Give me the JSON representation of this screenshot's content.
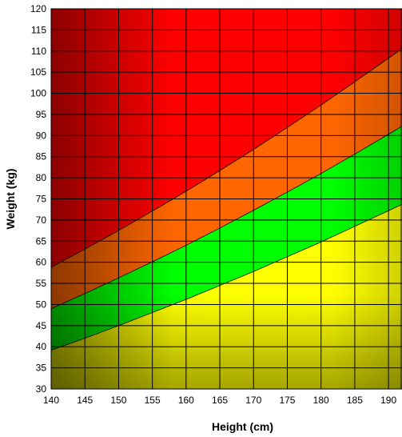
{
  "chart_data": {
    "type": "area",
    "title": "",
    "xlabel": "Height (cm)",
    "ylabel": "Weight (kg)",
    "xlim": [
      140,
      192
    ],
    "ylim": [
      30,
      120
    ],
    "x_ticks": [
      140,
      145,
      150,
      155,
      160,
      165,
      170,
      175,
      180,
      185,
      190
    ],
    "y_ticks": [
      30,
      35,
      40,
      45,
      50,
      55,
      60,
      65,
      70,
      75,
      80,
      85,
      90,
      95,
      100,
      105,
      110,
      115,
      120
    ],
    "grid": true,
    "legend": "none",
    "x": [
      140,
      145,
      150,
      155,
      160,
      165,
      170,
      175,
      180,
      185,
      190,
      192
    ],
    "boundaries": [
      {
        "values": [
          39.2,
          42.0,
          45.0,
          48.1,
          51.2,
          54.5,
          57.8,
          61.3,
          64.8,
          68.5,
          72.2,
          73.7
        ]
      },
      {
        "values": [
          49.0,
          52.6,
          56.3,
          60.1,
          64.0,
          68.1,
          72.3,
          76.6,
          81.0,
          85.6,
          90.3,
          92.2
        ]
      },
      {
        "values": [
          58.8,
          63.1,
          67.5,
          72.1,
          76.8,
          81.7,
          86.7,
          91.9,
          97.2,
          102.7,
          108.3,
          110.6
        ]
      }
    ],
    "bands": [
      {
        "lower": null,
        "upper": 0,
        "color": "#ffff00"
      },
      {
        "lower": 0,
        "upper": 1,
        "color": "#00ff00"
      },
      {
        "lower": 1,
        "upper": 2,
        "color": "#ff6600"
      },
      {
        "lower": 2,
        "upper": null,
        "color": "#ff0000"
      }
    ]
  }
}
